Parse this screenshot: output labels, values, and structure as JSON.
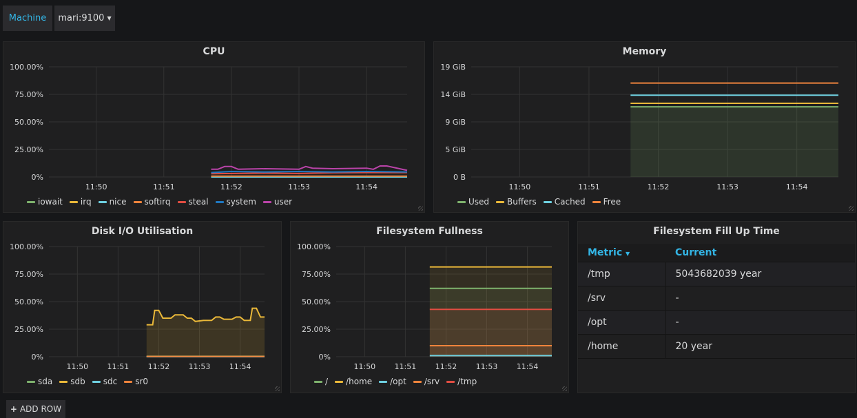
{
  "templating": {
    "label": "Machine",
    "selected": "mari:9100"
  },
  "add_row": {
    "icon": "plus-icon",
    "label": "ADD ROW"
  },
  "x_ticks": [
    "11:50",
    "11:51",
    "11:52",
    "11:53",
    "11:54"
  ],
  "colors": {
    "green": "#7eb26d",
    "yellow": "#eab839",
    "cyan": "#6ed0e0",
    "orange": "#ef843c",
    "red": "#e24d42",
    "blue": "#1f78c1",
    "purple": "#ba43a9"
  },
  "chart_data": [
    {
      "id": "cpu",
      "type": "line",
      "title": "CPU",
      "ylim": [
        0,
        100
      ],
      "y_ticks": [
        "0%",
        "25.00%",
        "50.00%",
        "75.00%",
        "100.00%"
      ],
      "y_values": [
        0,
        25,
        50,
        75,
        100
      ],
      "x_min": 11.49,
      "x_max": 11.546,
      "series": [
        {
          "name": "iowait",
          "color": "#7eb26d",
          "x": [
            11.517,
            11.546
          ],
          "y": [
            0.5,
            0.5
          ]
        },
        {
          "name": "irq",
          "color": "#eab839",
          "x": [
            11.517,
            11.546
          ],
          "y": [
            0.2,
            0.2
          ]
        },
        {
          "name": "nice",
          "color": "#6ed0e0",
          "x": [
            11.517,
            11.546
          ],
          "y": [
            0,
            0
          ]
        },
        {
          "name": "softirq",
          "color": "#ef843c",
          "x": [
            11.517,
            11.546
          ],
          "y": [
            0.8,
            0.8
          ]
        },
        {
          "name": "steal",
          "color": "#e24d42",
          "x": [
            11.517,
            11.525,
            11.53,
            11.535,
            11.54,
            11.546
          ],
          "y": [
            3,
            3.5,
            3.2,
            3.8,
            4,
            4
          ]
        },
        {
          "name": "system",
          "color": "#1f78c1",
          "x": [
            11.517,
            11.52,
            11.525,
            11.53,
            11.535,
            11.54,
            11.546
          ],
          "y": [
            4,
            5,
            4.5,
            5,
            4.5,
            5,
            4.5
          ]
        },
        {
          "name": "user",
          "color": "#ba43a9",
          "x": [
            11.517,
            11.518,
            11.519,
            11.52,
            11.521,
            11.525,
            11.53,
            11.531,
            11.532,
            11.535,
            11.54,
            11.541,
            11.542,
            11.543,
            11.546
          ],
          "y": [
            7,
            7,
            9.5,
            9.5,
            7,
            7.5,
            7,
            9.5,
            8,
            7.5,
            8,
            7,
            10,
            10,
            6
          ]
        }
      ],
      "legend": [
        "iowait",
        "irq",
        "nice",
        "softirq",
        "steal",
        "system",
        "user"
      ]
    },
    {
      "id": "memory",
      "type": "line",
      "title": "Memory",
      "y_ticks": [
        "0 B",
        "5 GiB",
        "9 GiB",
        "14 GiB",
        "19 GiB"
      ],
      "y_values": [
        0,
        4.75,
        9.5,
        14.25,
        19
      ],
      "ylim": [
        0,
        19
      ],
      "x_min": 11.49,
      "x_max": 11.546,
      "fill": "Used",
      "series": [
        {
          "name": "Used",
          "color": "#7eb26d",
          "x": [
            11.516,
            11.546
          ],
          "y": [
            12.1,
            12.1
          ]
        },
        {
          "name": "Buffers",
          "color": "#eab839",
          "x": [
            11.516,
            11.546
          ],
          "y": [
            12.7,
            12.7
          ]
        },
        {
          "name": "Cached",
          "color": "#6ed0e0",
          "x": [
            11.516,
            11.546
          ],
          "y": [
            14.1,
            14.1
          ]
        },
        {
          "name": "Free",
          "color": "#ef843c",
          "x": [
            11.516,
            11.546
          ],
          "y": [
            16.2,
            16.2
          ]
        }
      ],
      "legend": [
        "Used",
        "Buffers",
        "Cached",
        "Free"
      ]
    },
    {
      "id": "disk",
      "type": "area",
      "title": "Disk I/O Utilisation",
      "ylim": [
        0,
        100
      ],
      "y_ticks": [
        "0%",
        "25.00%",
        "50.00%",
        "75.00%",
        "100.00%"
      ],
      "y_values": [
        0,
        25,
        50,
        75,
        100
      ],
      "x_min": 11.494,
      "x_max": 11.546,
      "fill": "sdb",
      "series": [
        {
          "name": "sda",
          "color": "#7eb26d",
          "x": [
            11.517,
            11.546
          ],
          "y": [
            0.4,
            0.4
          ]
        },
        {
          "name": "sdb",
          "color": "#eab839",
          "x": [
            11.517,
            11.5185,
            11.519,
            11.52,
            11.521,
            11.523,
            11.524,
            11.526,
            11.527,
            11.528,
            11.529,
            11.531,
            11.533,
            11.534,
            11.535,
            11.536,
            11.538,
            11.539,
            11.54,
            11.541,
            11.5425,
            11.543,
            11.544,
            11.545,
            11.546
          ],
          "y": [
            29,
            29,
            42,
            42,
            35,
            35,
            38,
            38,
            35,
            35,
            32,
            33,
            33,
            36,
            36,
            34,
            34,
            36,
            36,
            33,
            33,
            44,
            44,
            36,
            36
          ]
        },
        {
          "name": "sdc",
          "color": "#6ed0e0",
          "x": [
            11.517,
            11.546
          ],
          "y": [
            0,
            0
          ]
        },
        {
          "name": "sr0",
          "color": "#ef843c",
          "x": [
            11.517,
            11.546
          ],
          "y": [
            0.2,
            0.2
          ]
        }
      ],
      "legend": [
        "sda",
        "sdb",
        "sdc",
        "sr0"
      ]
    },
    {
      "id": "fs",
      "type": "area",
      "title": "Filesystem Fullness",
      "ylim": [
        0,
        100
      ],
      "y_ticks": [
        "0%",
        "25.00%",
        "50.00%",
        "75.00%",
        "100.00%"
      ],
      "y_values": [
        0,
        25,
        50,
        75,
        100
      ],
      "x_min": 11.494,
      "x_max": 11.546,
      "fill": "all",
      "series": [
        {
          "name": "/",
          "color": "#7eb26d",
          "x": [
            11.516,
            11.546
          ],
          "y": [
            62,
            62
          ]
        },
        {
          "name": "/home",
          "color": "#eab839",
          "x": [
            11.516,
            11.546
          ],
          "y": [
            81.5,
            81.5
          ]
        },
        {
          "name": "/opt",
          "color": "#6ed0e0",
          "x": [
            11.516,
            11.546
          ],
          "y": [
            1,
            1
          ]
        },
        {
          "name": "/srv",
          "color": "#ef843c",
          "x": [
            11.516,
            11.546
          ],
          "y": [
            10,
            10
          ]
        },
        {
          "name": "/tmp",
          "color": "#e24d42",
          "x": [
            11.516,
            11.546
          ],
          "y": [
            43,
            43
          ]
        }
      ],
      "legend": [
        "/",
        "/home",
        "/opt",
        "/srv",
        "/tmp"
      ]
    }
  ],
  "fill_table": {
    "title": "Filesystem Fill Up Time",
    "headers": [
      "Metric",
      "Current"
    ],
    "rows": [
      [
        "/tmp",
        "5043682039 year"
      ],
      [
        "/srv",
        "-"
      ],
      [
        "/opt",
        "-"
      ],
      [
        "/home",
        "20 year"
      ]
    ]
  }
}
